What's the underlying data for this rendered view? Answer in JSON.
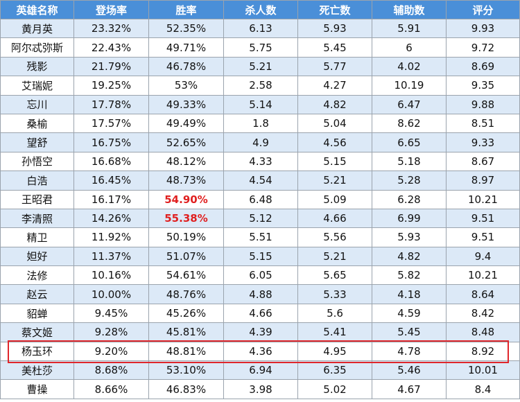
{
  "table": {
    "headers": [
      "英雄名称",
      "登场率",
      "胜率",
      "杀人数",
      "死亡数",
      "辅助数",
      "评分"
    ],
    "rows": [
      [
        "黄月英",
        "23.32%",
        "52.35%",
        "6.13",
        "5.93",
        "5.91",
        "9.93"
      ],
      [
        "阿尔忒弥斯",
        "22.43%",
        "49.71%",
        "5.75",
        "5.45",
        "6",
        "9.72"
      ],
      [
        "残影",
        "21.79%",
        "46.78%",
        "5.21",
        "5.77",
        "4.02",
        "8.69"
      ],
      [
        "艾瑞妮",
        "19.25%",
        "53%",
        "2.58",
        "4.27",
        "10.19",
        "9.35"
      ],
      [
        "忘川",
        "17.78%",
        "49.33%",
        "5.14",
        "4.82",
        "6.47",
        "9.88"
      ],
      [
        "桑榆",
        "17.57%",
        "49.49%",
        "1.8",
        "5.04",
        "8.62",
        "8.51"
      ],
      [
        "望舒",
        "16.75%",
        "52.65%",
        "4.9",
        "4.56",
        "6.65",
        "9.33"
      ],
      [
        "孙悟空",
        "16.68%",
        "48.12%",
        "4.33",
        "5.15",
        "5.18",
        "8.67"
      ],
      [
        "白浩",
        "16.45%",
        "48.73%",
        "4.54",
        "5.21",
        "5.28",
        "8.97"
      ],
      [
        "王昭君",
        "16.17%",
        "54.90%",
        "6.48",
        "5.09",
        "6.28",
        "10.21"
      ],
      [
        "李清照",
        "14.26%",
        "55.38%",
        "5.12",
        "4.66",
        "6.99",
        "9.51"
      ],
      [
        "精卫",
        "11.92%",
        "50.19%",
        "5.51",
        "5.56",
        "5.93",
        "9.51"
      ],
      [
        "妲好",
        "11.37%",
        "51.07%",
        "5.15",
        "5.21",
        "4.82",
        "9.4"
      ],
      [
        "法修",
        "10.16%",
        "54.61%",
        "6.05",
        "5.65",
        "5.82",
        "10.21"
      ],
      [
        "赵云",
        "10.00%",
        "48.76%",
        "4.88",
        "5.33",
        "4.18",
        "8.64"
      ],
      [
        "貂蝉",
        "9.45%",
        "45.26%",
        "4.66",
        "5.6",
        "4.59",
        "8.42"
      ],
      [
        "蔡文姬",
        "9.28%",
        "45.81%",
        "4.39",
        "5.41",
        "5.45",
        "8.48"
      ],
      [
        "杨玉环",
        "9.20%",
        "48.81%",
        "4.36",
        "4.95",
        "4.78",
        "8.92"
      ],
      [
        "美杜莎",
        "8.68%",
        "53.10%",
        "6.94",
        "6.35",
        "5.46",
        "10.01"
      ],
      [
        "曹操",
        "8.66%",
        "46.83%",
        "3.98",
        "5.02",
        "4.67",
        "8.4"
      ]
    ]
  },
  "colors": {
    "header_bg": "#4a8fd8",
    "stripe": "#dce9f7",
    "highlight_text": "#e02020",
    "highlight_box": "#e0262b"
  }
}
